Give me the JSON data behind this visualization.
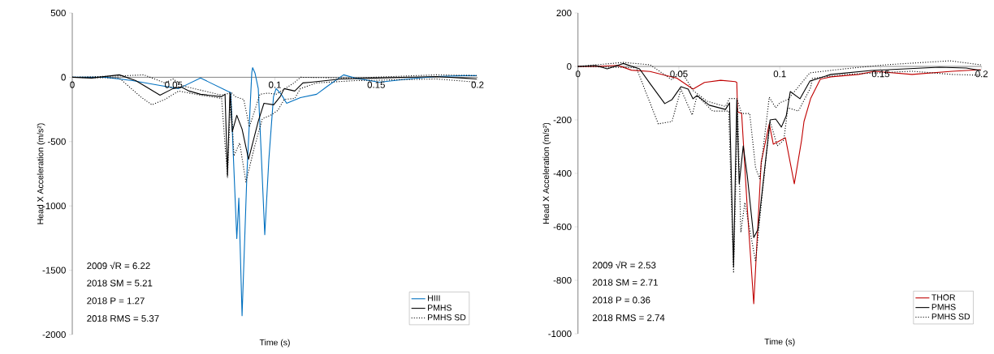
{
  "chart_data": [
    {
      "type": "line",
      "xlabel": "Time (s)",
      "ylabel": "Head X Acceleration (m/s²)",
      "xlim": [
        0,
        0.2
      ],
      "ylim": [
        -2000,
        500
      ],
      "xticks": [
        0,
        0.05,
        0.1,
        0.15,
        0.2
      ],
      "yticks": [
        -2000,
        -1500,
        -1000,
        -500,
        0,
        500
      ],
      "legend": "bottom right",
      "annotations": [
        "2009 √R = 6.22",
        "2018 SM = 5.21",
        "2018 P = 1.27",
        "2018 RMS =  5.37"
      ],
      "series": [
        {
          "name": "HIII",
          "color": "#0070c0",
          "line_style": "solid",
          "x": [
            0,
            0.0164,
            0.0297,
            0.0433,
            0.0525,
            0.0633,
            0.0766,
            0.0782,
            0.0812,
            0.0822,
            0.0838,
            0.0862,
            0.0886,
            0.089,
            0.0902,
            0.0918,
            0.0934,
            0.095,
            0.097,
            0.0993,
            0.1006,
            0.103,
            0.1058,
            0.1126,
            0.1206,
            0.1259,
            0.1339,
            0.1395,
            0.1515,
            0.1659,
            0.1796,
            0.1928,
            0.1996
          ],
          "values": [
            0,
            0,
            -26,
            -64,
            -88,
            -6,
            -107,
            -118,
            -1254,
            -939,
            -1854,
            -750,
            38,
            75,
            32,
            -88,
            -643,
            -1223,
            -643,
            -151,
            -88,
            -129,
            -202,
            -158,
            -132,
            -70,
            19,
            -6,
            -38,
            -13,
            6,
            13,
            13
          ]
        },
        {
          "name": "PMHS",
          "color": "#000000",
          "line_style": "solid",
          "x": [
            0,
            0.0096,
            0.0232,
            0.0313,
            0.0365,
            0.0433,
            0.0497,
            0.0537,
            0.0577,
            0.0633,
            0.0737,
            0.0754,
            0.0766,
            0.0778,
            0.079,
            0.0812,
            0.0838,
            0.087,
            0.0918,
            0.0946,
            0.0994,
            0.1026,
            0.1046,
            0.1098,
            0.1138,
            0.1178,
            0.1327,
            0.1659,
            0.1796,
            0.1928,
            0.1996
          ],
          "values": [
            0,
            -6,
            19,
            -26,
            -75,
            -139,
            -88,
            -75,
            -107,
            -132,
            -151,
            -132,
            -761,
            -120,
            -422,
            -296,
            -403,
            -637,
            -341,
            -202,
            -214,
            -151,
            -88,
            -107,
            -44,
            -38,
            -13,
            0,
            6,
            -6,
            -13
          ]
        },
        {
          "name": "PMHS SD",
          "color": "#000000",
          "line_style": "dotted",
          "x": [
            0,
            0.0232,
            0.0353,
            0.0457,
            0.0497,
            0.0553,
            0.0737,
            0.0786,
            0.0806,
            0.0846,
            0.0874,
            0.0926,
            0.0966,
            0.1006,
            0.1098,
            0.1126,
            0.1395,
            0.1796,
            0.1996
          ],
          "values": [
            0,
            10,
            19,
            -44,
            -13,
            -70,
            -139,
            -120,
            -151,
            -172,
            -386,
            -132,
            -123,
            -132,
            -40,
            0,
            -6,
            19,
            13
          ]
        },
        {
          "color": "#000000",
          "line_style": "dotted",
          "x": [
            0,
            0.0232,
            0.0337,
            0.0393,
            0.0457,
            0.0525,
            0.0633,
            0.0737,
            0.0766,
            0.0782,
            0.0798,
            0.0826,
            0.0857,
            0.0898,
            0.0938,
            0.0978,
            0.1014,
            0.1046,
            0.1098,
            0.1126,
            0.1206,
            0.1395,
            0.1796,
            0.1996
          ],
          "values": [
            0,
            -6,
            -151,
            -214,
            -172,
            -107,
            -139,
            -164,
            -783,
            -125,
            -611,
            -510,
            -814,
            -549,
            -322,
            -296,
            -258,
            -172,
            -164,
            -88,
            -44,
            -26,
            -13,
            -38
          ]
        }
      ]
    },
    {
      "type": "line",
      "xlabel": "Time (s)",
      "ylabel": "Head X Acceleration (m/s²)",
      "xlim": [
        0,
        0.2
      ],
      "ylim": [
        -1000,
        200
      ],
      "xticks": [
        0,
        0.05,
        0.1,
        0.15,
        0.2
      ],
      "yticks": [
        -1000,
        -800,
        -600,
        -400,
        -200,
        0,
        200
      ],
      "legend": "bottom right",
      "annotations": [
        "2009 √R = 2.53",
        "2018 SM = 2.71",
        "2018 P = 0.36",
        "2018 RMS =  2.74"
      ],
      "series": [
        {
          "name": "THOR",
          "color": "#c00000",
          "line_style": "solid",
          "x": [
            0,
            0.0088,
            0.0197,
            0.0265,
            0.0357,
            0.049,
            0.057,
            0.0627,
            0.0707,
            0.0779,
            0.0787,
            0.0791,
            0.0811,
            0.0839,
            0.0871,
            0.0908,
            0.0948,
            0.0968,
            0.1028,
            0.1072,
            0.1108,
            0.112,
            0.1153,
            0.1201,
            0.1253,
            0.139,
            0.147,
            0.1655,
            0.1855,
            0.1996
          ],
          "values": [
            0,
            0,
            4,
            -14,
            -19,
            -44,
            -85,
            -60,
            -52,
            -57,
            -60,
            -170,
            -176,
            -530,
            -888,
            -357,
            -215,
            -291,
            -267,
            -439,
            -276,
            -206,
            -120,
            -48,
            -39,
            -30,
            -18,
            -30,
            -18,
            -12
          ]
        },
        {
          "name": "PMHS",
          "color": "#000000",
          "line_style": "solid",
          "x": [
            0,
            0.0088,
            0.0145,
            0.0225,
            0.0305,
            0.0357,
            0.043,
            0.0466,
            0.051,
            0.0546,
            0.057,
            0.059,
            0.0651,
            0.0731,
            0.0751,
            0.0771,
            0.0787,
            0.0799,
            0.0819,
            0.0839,
            0.0871,
            0.0892,
            0.0952,
            0.098,
            0.1008,
            0.1032,
            0.1052,
            0.11,
            0.1149,
            0.1253,
            0.1454,
            0.1791,
            0.1924,
            0.1996
          ],
          "values": [
            0,
            4,
            -9,
            11,
            -9,
            -64,
            -139,
            -124,
            -76,
            -85,
            -121,
            -109,
            -145,
            -161,
            -136,
            -751,
            -124,
            -439,
            -297,
            -409,
            -640,
            -610,
            -200,
            -197,
            -227,
            -185,
            -94,
            -121,
            -55,
            -30,
            -15,
            -3,
            -6,
            -15
          ]
        },
        {
          "name": "PMHS SD",
          "color": "#000000",
          "line_style": "dotted",
          "x": [
            0,
            0.0225,
            0.0357,
            0.0466,
            0.051,
            0.057,
            0.0639,
            0.0731,
            0.0751,
            0.0787,
            0.0811,
            0.0851,
            0.088,
            0.09,
            0.0948,
            0.098,
            0.1,
            0.104,
            0.1092,
            0.1149,
            0.1321,
            0.1522,
            0.1843,
            0.1996
          ],
          "values": [
            0,
            15,
            6,
            -50,
            -15,
            -90,
            -130,
            -150,
            -120,
            -120,
            -176,
            -176,
            -379,
            -420,
            -115,
            -155,
            -136,
            -124,
            -76,
            -24,
            -9,
            6,
            21,
            6
          ]
        },
        {
          "color": "#000000",
          "line_style": "dotted",
          "x": [
            0,
            0.0289,
            0.0398,
            0.0466,
            0.051,
            0.0566,
            0.059,
            0.0667,
            0.0747,
            0.0771,
            0.0791,
            0.0807,
            0.0827,
            0.088,
            0.092,
            0.0952,
            0.0988,
            0.102,
            0.104,
            0.1092,
            0.1153,
            0.1161,
            0.1321,
            0.1655,
            0.1855,
            0.1996
          ],
          "values": [
            0,
            -5,
            -215,
            -206,
            -85,
            -182,
            -109,
            -167,
            -167,
            -773,
            -155,
            -621,
            -509,
            -730,
            -427,
            -206,
            -297,
            -276,
            -155,
            -167,
            -79,
            -45,
            -30,
            -18,
            -30,
            -33
          ]
        }
      ]
    }
  ]
}
